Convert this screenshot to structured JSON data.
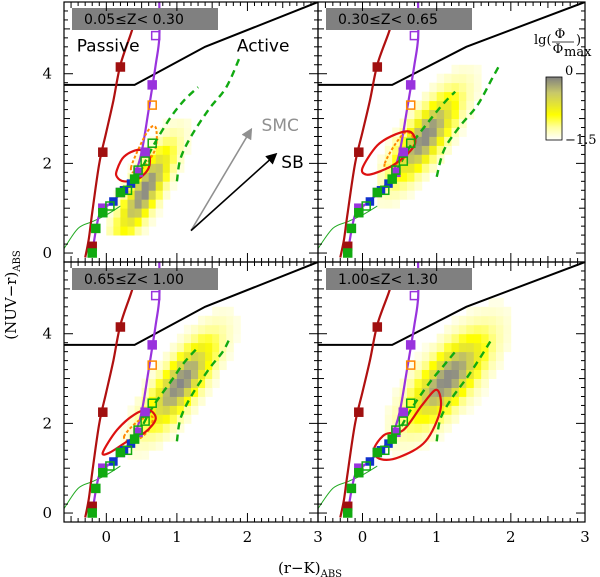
{
  "chart_data": {
    "type": "heatmap",
    "figure": {
      "xlabel": "(r−K)",
      "xlabel_sub": "ABS",
      "ylabel": "(NUV−r)",
      "ylabel_sub": "ABS",
      "xlim": [
        -0.6,
        3.0
      ],
      "ylim": [
        -0.2,
        5.6
      ],
      "xticks": [
        0,
        1,
        2,
        3
      ],
      "yticks": [
        0,
        2,
        4
      ]
    },
    "colorbar": {
      "label_main": "lg(",
      "label_frac_top": "Φ",
      "label_frac_bottom": "Φ",
      "label_frac_bottom_sub": "max",
      "label_close": ")",
      "top_value": "0",
      "bottom_value": "−1.5",
      "low_color": "#ffffff",
      "mid_color": "#ffff00",
      "high_color": "#808080"
    },
    "annotations": {
      "passive": "Passive",
      "active": "Active",
      "smc": "SMC",
      "sb": "SB",
      "smc_color": "#909090",
      "sb_color": "#000000"
    },
    "panels": [
      {
        "title": "0.05≤Z<   0.30",
        "center": {
          "x0": 0.55,
          "y0": 1.4,
          "sx": 0.28,
          "sy": 0.72,
          "rho": 0.82
        },
        "blob": {
          "xmin": 0.0,
          "xmax": 1.8,
          "ymin": 0.5,
          "ymax": 5.0
        },
        "green_dash_1": [
          [
            0.45,
            1.7
          ],
          [
            0.65,
            2.35
          ],
          [
            0.9,
            3.0
          ],
          [
            1.1,
            3.4
          ],
          [
            1.3,
            3.7
          ]
        ],
        "green_dash_2": [
          [
            1.0,
            1.6
          ],
          [
            1.05,
            2.1
          ],
          [
            1.2,
            2.6
          ],
          [
            1.45,
            3.2
          ],
          [
            1.7,
            3.7
          ],
          [
            1.9,
            4.4
          ]
        ],
        "red_contour": [
          [
            0.15,
            1.85
          ],
          [
            0.25,
            2.15
          ],
          [
            0.45,
            2.3
          ],
          [
            0.6,
            2.2
          ],
          [
            0.6,
            1.9
          ],
          [
            0.45,
            1.65
          ],
          [
            0.25,
            1.6
          ],
          [
            0.15,
            1.7
          ]
        ],
        "orange_contour": [
          [
            0.35,
            1.9
          ],
          [
            0.45,
            2.3
          ],
          [
            0.6,
            2.75
          ],
          [
            0.7,
            2.8
          ],
          [
            0.7,
            2.35
          ],
          [
            0.55,
            1.95
          ],
          [
            0.4,
            1.8
          ]
        ],
        "has_annotations": true
      },
      {
        "title": "0.30≤Z<   0.65",
        "center": {
          "x0": 0.85,
          "y0": 2.6,
          "sx": 0.32,
          "sy": 0.7,
          "rho": 0.78
        },
        "blob": {
          "xmin": 0.2,
          "xmax": 1.9,
          "ymin": 1.1,
          "ymax": 5.3
        },
        "green_dash_1": [
          [
            0.45,
            1.8
          ],
          [
            0.65,
            2.4
          ],
          [
            0.9,
            2.95
          ],
          [
            1.1,
            3.35
          ],
          [
            1.25,
            3.6
          ]
        ],
        "green_dash_2": [
          [
            1.0,
            1.7
          ],
          [
            1.1,
            2.3
          ],
          [
            1.3,
            2.8
          ],
          [
            1.55,
            3.3
          ],
          [
            1.75,
            3.9
          ],
          [
            1.85,
            4.2
          ]
        ],
        "red_contour": [
          [
            0.0,
            1.9
          ],
          [
            0.2,
            2.4
          ],
          [
            0.45,
            2.65
          ],
          [
            0.65,
            2.7
          ],
          [
            0.7,
            2.4
          ],
          [
            0.45,
            2.0
          ],
          [
            0.2,
            1.8
          ],
          [
            0.05,
            1.75
          ]
        ],
        "orange_contour": [
          [
            0.3,
            2.0
          ],
          [
            0.45,
            2.45
          ],
          [
            0.6,
            2.7
          ],
          [
            0.7,
            2.45
          ],
          [
            0.55,
            2.1
          ],
          [
            0.35,
            1.9
          ]
        ],
        "has_annotations": false
      },
      {
        "title": "0.65≤Z<   1.00",
        "center": {
          "x0": 1.05,
          "y0": 2.9,
          "sx": 0.35,
          "sy": 0.72,
          "rho": 0.78
        },
        "blob": {
          "xmin": 0.25,
          "xmax": 2.0,
          "ymin": 1.1,
          "ymax": 5.0
        },
        "green_dash_1": [
          [
            0.45,
            1.75
          ],
          [
            0.65,
            2.35
          ],
          [
            0.9,
            2.9
          ],
          [
            1.1,
            3.35
          ],
          [
            1.3,
            3.7
          ]
        ],
        "green_dash_2": [
          [
            1.0,
            1.6
          ],
          [
            1.05,
            2.1
          ],
          [
            1.2,
            2.6
          ],
          [
            1.45,
            3.2
          ],
          [
            1.65,
            3.6
          ],
          [
            1.75,
            3.9
          ]
        ],
        "red_contour": [
          [
            -0.05,
            1.35
          ],
          [
            0.15,
            1.85
          ],
          [
            0.4,
            2.2
          ],
          [
            0.6,
            2.3
          ],
          [
            0.7,
            2.1
          ],
          [
            0.55,
            1.8
          ],
          [
            0.3,
            1.6
          ],
          [
            0.05,
            1.35
          ]
        ],
        "orange_contour": [
          [
            0.25,
            1.7
          ],
          [
            0.45,
            2.05
          ],
          [
            0.65,
            2.15
          ],
          [
            0.6,
            1.85
          ],
          [
            0.4,
            1.6
          ]
        ],
        "has_annotations": false
      },
      {
        "title": "1.00≤Z<   1.30",
        "center": {
          "x0": 1.15,
          "y0": 3.0,
          "sx": 0.38,
          "sy": 0.72,
          "rho": 0.72
        },
        "blob": {
          "xmin": 0.3,
          "xmax": 2.05,
          "ymin": 1.3,
          "ymax": 5.1
        },
        "green_dash_1": [
          [
            0.45,
            1.7
          ],
          [
            0.65,
            2.3
          ],
          [
            0.9,
            2.9
          ],
          [
            1.1,
            3.3
          ],
          [
            1.25,
            3.6
          ]
        ],
        "green_dash_2": [
          [
            1.0,
            1.6
          ],
          [
            1.05,
            2.1
          ],
          [
            1.2,
            2.55
          ],
          [
            1.4,
            3.0
          ],
          [
            1.6,
            3.5
          ],
          [
            1.75,
            3.9
          ]
        ],
        "red_contour": [
          [
            0.15,
            1.4
          ],
          [
            0.3,
            1.75
          ],
          [
            0.55,
            1.85
          ],
          [
            0.8,
            2.4
          ],
          [
            1.0,
            2.75
          ],
          [
            1.05,
            2.3
          ],
          [
            0.85,
            1.6
          ],
          [
            0.5,
            1.25
          ],
          [
            0.25,
            1.2
          ]
        ],
        "orange_contour": [],
        "has_annotations": false
      }
    ],
    "common": {
      "selection_line": [
        [
          -0.6,
          3.75
        ],
        [
          0.4,
          3.75
        ],
        [
          1.4,
          4.6
        ],
        [
          3.0,
          5.6
        ]
      ],
      "red_track": [
        [
          -0.3,
          -0.1
        ],
        [
          -0.25,
          0.3
        ],
        [
          -0.2,
          0.9
        ],
        [
          -0.1,
          2.0
        ],
        [
          0.0,
          2.7
        ],
        [
          0.1,
          3.4
        ],
        [
          0.2,
          4.2
        ],
        [
          0.35,
          4.9
        ],
        [
          0.45,
          5.4
        ]
      ],
      "red_squares": [
        [
          -0.2,
          0.15
        ],
        [
          -0.05,
          2.25
        ],
        [
          0.2,
          4.15
        ]
      ],
      "purple_track": [
        [
          -0.2,
          0.0
        ],
        [
          -0.1,
          0.85
        ],
        [
          0.05,
          1.1
        ],
        [
          0.25,
          1.4
        ],
        [
          0.4,
          1.75
        ],
        [
          0.5,
          2.25
        ],
        [
          0.6,
          3.2
        ],
        [
          0.7,
          4.2
        ],
        [
          0.75,
          4.8
        ],
        [
          0.75,
          5.6
        ]
      ],
      "purple_filled": [
        [
          -0.05,
          1.0
        ],
        [
          0.2,
          1.35
        ],
        [
          0.45,
          1.8
        ],
        [
          0.55,
          2.25
        ],
        [
          0.65,
          3.75
        ]
      ],
      "purple_open": [
        [
          0.7,
          4.85
        ]
      ],
      "orange_open": [
        [
          0.65,
          3.3
        ]
      ],
      "green_filled": [
        [
          -0.2,
          0.0
        ],
        [
          -0.15,
          0.55
        ],
        [
          -0.05,
          0.9
        ],
        [
          0.2,
          1.35
        ],
        [
          0.4,
          1.65
        ]
      ],
      "green_open": [
        [
          0.05,
          1.05
        ],
        [
          0.3,
          1.4
        ],
        [
          0.45,
          1.85
        ],
        [
          0.55,
          2.05
        ],
        [
          0.65,
          2.45
        ]
      ],
      "blue_filled": [
        [
          0.1,
          1.15
        ],
        [
          0.25,
          1.4
        ],
        [
          0.35,
          1.55
        ]
      ],
      "thin_green_curve": [
        [
          -0.6,
          0.1
        ],
        [
          -0.4,
          0.55
        ],
        [
          -0.2,
          0.7
        ],
        [
          0.0,
          0.85
        ],
        [
          0.2,
          1.05
        ]
      ]
    },
    "vectors": {
      "smc": {
        "from": [
          1.2,
          0.5
        ],
        "to": [
          2.05,
          2.75
        ]
      },
      "sb": {
        "from": [
          1.2,
          0.5
        ],
        "to": [
          2.4,
          2.2
        ]
      }
    }
  }
}
